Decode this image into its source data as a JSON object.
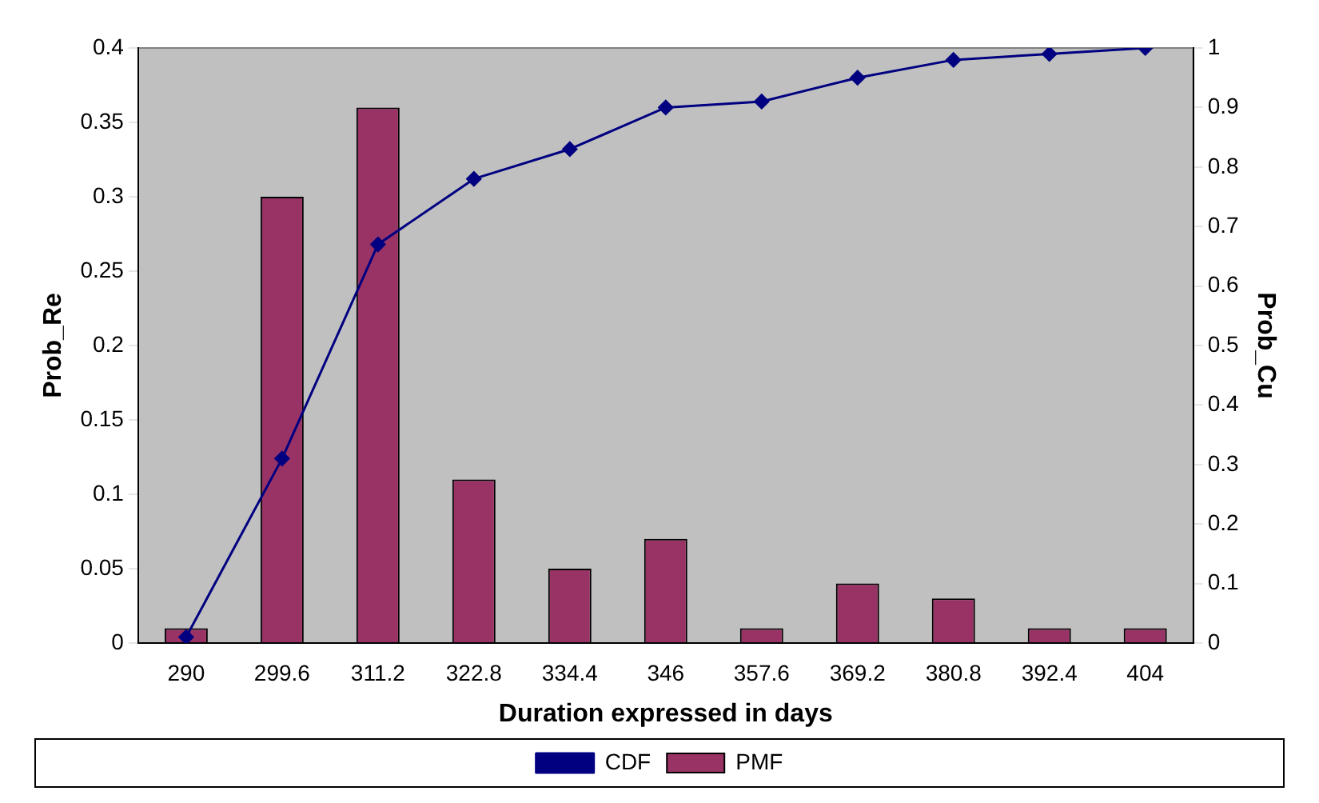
{
  "chart_data": {
    "type": "bar",
    "xlabel": "Duration expressed in days",
    "ylabel": "Prob_Re",
    "y2label": "Prob_Cu",
    "categories": [
      "290",
      "299.6",
      "311.2",
      "322.8",
      "334.4",
      "346",
      "357.6",
      "369.2",
      "380.8",
      "392.4",
      "404"
    ],
    "series": [
      {
        "name": "PMF",
        "color": "#993366",
        "values": [
          0.01,
          0.3,
          0.36,
          0.11,
          0.05,
          0.07,
          0.01,
          0.04,
          0.03,
          0.01,
          0.01
        ]
      },
      {
        "name": "CDF",
        "type": "line",
        "axis": "y2",
        "color": "#000080",
        "values": [
          0.01,
          0.31,
          0.67,
          0.78,
          0.83,
          0.9,
          0.91,
          0.95,
          0.98,
          0.99,
          1.0
        ]
      }
    ],
    "ylim": [
      0,
      0.4
    ],
    "yticks": [
      0,
      0.05,
      0.1,
      0.15,
      0.2,
      0.25,
      0.3,
      0.35,
      0.4
    ],
    "y2lim": [
      0,
      1
    ],
    "y2ticks": [
      0,
      0.1,
      0.2,
      0.3,
      0.4,
      0.5,
      0.6,
      0.7,
      0.8,
      0.9,
      1
    ],
    "grid": false,
    "legend": "bottom",
    "marker": "diamond"
  }
}
